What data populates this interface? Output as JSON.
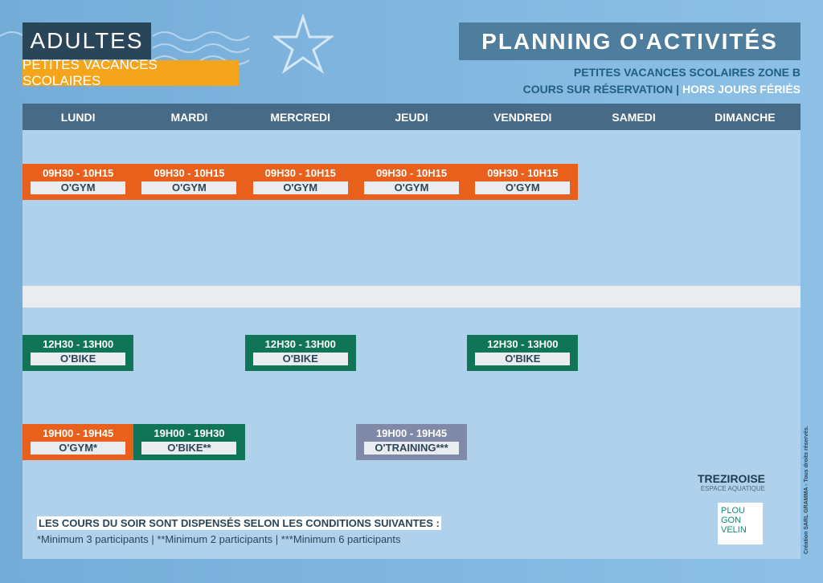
{
  "header": {
    "audience": "ADULTES",
    "period": "PETITES VACANCES SCOLAIRES",
    "title": "PLANNING O'ACTIVITÉS",
    "info_line1": "PETITES VACANCES SCOLAIRES ZONE B",
    "info_line2a": "COURS SUR RÉSERVATION |",
    "info_line2b": "HORS JOURS FÉRIÉS"
  },
  "days": [
    "LUNDI",
    "MARDI",
    "MERCREDI",
    "JEUDI",
    "VENDREDI",
    "SAMEDI",
    "DIMANCHE"
  ],
  "slots": [
    {
      "day": 0,
      "time": "09H30 - 10H15",
      "name": "O'GYM",
      "color": "orange"
    },
    {
      "day": 1,
      "time": "09H30 - 10H15",
      "name": "O'GYM",
      "color": "orange"
    },
    {
      "day": 2,
      "time": "09H30 - 10H15",
      "name": "O'GYM",
      "color": "orange"
    },
    {
      "day": 3,
      "time": "09H30 - 10H15",
      "name": "O'GYM",
      "color": "orange"
    },
    {
      "day": 4,
      "time": "09H30 - 10H15",
      "name": "O'GYM",
      "color": "orange"
    },
    {
      "day": 0,
      "time": "12H30 - 13H00",
      "name": "O'BIKE",
      "color": "green"
    },
    {
      "day": 2,
      "time": "12H30 - 13H00",
      "name": "O'BIKE",
      "color": "green"
    },
    {
      "day": 4,
      "time": "12H30 - 13H00",
      "name": "O'BIKE",
      "color": "green"
    },
    {
      "day": 0,
      "time": "19H00 - 19H45",
      "name": "O'GYM*",
      "color": "orange"
    },
    {
      "day": 1,
      "time": "19H00 - 19H30",
      "name": "O'BIKE**",
      "color": "green"
    },
    {
      "day": 3,
      "time": "19H00 - 19H45",
      "name": "O'TRAINING***",
      "color": "gray"
    }
  ],
  "colors": {
    "orange": "#e8601c",
    "green": "#0f7556",
    "gray": "#8189a8"
  },
  "notes": {
    "heading": "LES COURS DU SOIR SONT DISPENSÉS SELON LES CONDITIONS SUIVANTES :",
    "conditions": "*Minimum 3 participants | **Minimum 2 participants | ***Minimum 6 participants"
  },
  "logos": {
    "trez": "TREZIROISE",
    "trez_sub": "ESPACE AQUATIQUE",
    "plou": "PLOU GON VELIN"
  },
  "credit": "Création SARL GRAMMA - Tous droits réservés."
}
